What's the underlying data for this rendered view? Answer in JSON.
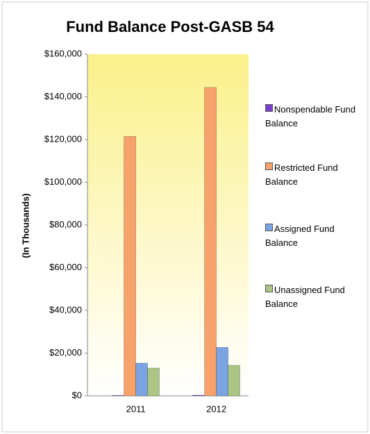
{
  "chart_data": {
    "type": "bar",
    "title": "Fund Balance Post-GASB 54",
    "y_label": "(In Thousands)",
    "categories": [
      "2011",
      "2012"
    ],
    "series": [
      {
        "name": "Nonspendable Fund Balance",
        "color": "#7a3fd1",
        "values": [
          200,
          300
        ]
      },
      {
        "name": "Restricted Fund Balance",
        "color": "#f7a26a",
        "values": [
          121500,
          144400
        ]
      },
      {
        "name": "Assigned Fund Balance",
        "color": "#7aa3e2",
        "values": [
          15300,
          22700
        ]
      },
      {
        "name": "Unassigned Fund Balance",
        "color": "#acc585",
        "values": [
          13000,
          14300
        ]
      }
    ],
    "ylim": [
      0,
      160000
    ],
    "yticks": [
      {
        "value": 0,
        "label": "$0"
      },
      {
        "value": 20000,
        "label": "$20,000"
      },
      {
        "value": 40000,
        "label": "$40,000"
      },
      {
        "value": 60000,
        "label": "$60,000"
      },
      {
        "value": 80000,
        "label": "$80,000"
      },
      {
        "value": 100000,
        "label": "$100,000"
      },
      {
        "value": 120000,
        "label": "$120,000"
      },
      {
        "value": 140000,
        "label": "$140,000"
      },
      {
        "value": 160000,
        "label": "$160,000"
      }
    ],
    "grid": false,
    "legend": "right"
  }
}
